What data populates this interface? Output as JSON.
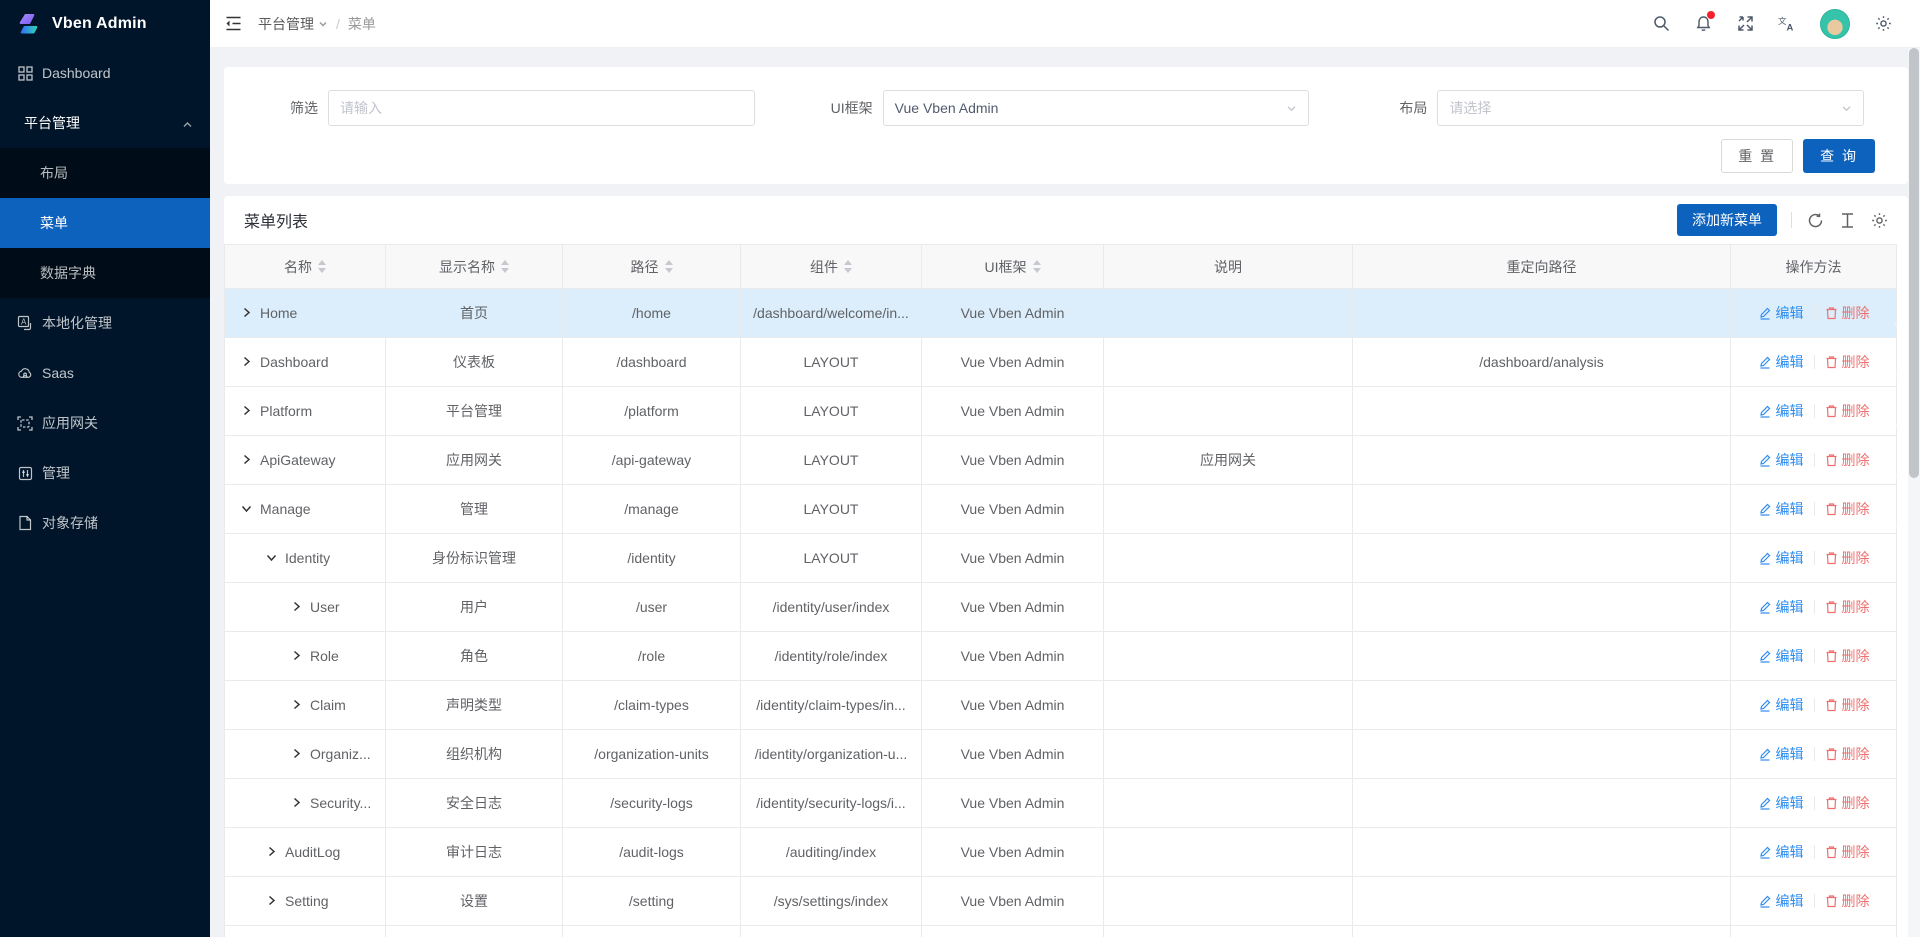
{
  "colors": {
    "primary": "#0d62bd",
    "sidebar_bg": "#001529",
    "sidebar_child_bg": "#000c17",
    "row_highlight": "#dceefb",
    "edit_link": "#2d8cf0",
    "delete_link": "#ed6f6f",
    "notification_dot": "#f5222d"
  },
  "app": {
    "logo_text": "Vben Admin"
  },
  "sidebar": {
    "items": [
      {
        "key": "dashboard",
        "label": "Dashboard",
        "icon": "dashboard-icon",
        "type": "root",
        "chevron": "down"
      },
      {
        "key": "platform-group",
        "label": "平台管理",
        "icon": "",
        "type": "group",
        "chevron": "up"
      },
      {
        "key": "layout",
        "label": "布局",
        "icon": "",
        "type": "child",
        "chevron": ""
      },
      {
        "key": "menu",
        "label": "菜单",
        "icon": "",
        "type": "child",
        "chevron": "",
        "selected": true
      },
      {
        "key": "data-dict",
        "label": "数据字典",
        "icon": "",
        "type": "child",
        "chevron": ""
      },
      {
        "key": "localization",
        "label": "本地化管理",
        "icon": "localization-icon",
        "type": "root",
        "chevron": "down"
      },
      {
        "key": "saas",
        "label": "Saas",
        "icon": "saas-cloud-icon",
        "type": "root",
        "chevron": "down"
      },
      {
        "key": "api-gateway",
        "label": "应用网关",
        "icon": "gateway-icon",
        "type": "root",
        "chevron": "down"
      },
      {
        "key": "manage",
        "label": "管理",
        "icon": "manage-icon",
        "type": "root",
        "chevron": "down"
      },
      {
        "key": "object-storage",
        "label": "对象存储",
        "icon": "storage-icon",
        "type": "root",
        "chevron": "down"
      }
    ]
  },
  "header": {
    "breadcrumb": {
      "group": "平台管理",
      "separator": "/",
      "current": "菜单"
    }
  },
  "filter": {
    "filter_label": "筛选",
    "filter_placeholder": "请输入",
    "ui_label": "UI框架",
    "ui_value": "Vue Vben Admin",
    "layout_label": "布局",
    "layout_placeholder": "请选择",
    "reset_label": "重 置",
    "search_label": "查 询"
  },
  "grid": {
    "title": "菜单列表",
    "add_button": "添加新菜单",
    "edit_label": "编辑",
    "delete_label": "删除",
    "columns": [
      {
        "label": "名称",
        "sortable": true
      },
      {
        "label": "显示名称",
        "sortable": true
      },
      {
        "label": "路径",
        "sortable": true
      },
      {
        "label": "组件",
        "sortable": true
      },
      {
        "label": "UI框架",
        "sortable": true
      },
      {
        "label": "说明",
        "sortable": false
      },
      {
        "label": "重定向路径",
        "sortable": false
      },
      {
        "label": "操作方法",
        "sortable": false
      }
    ],
    "rows": [
      {
        "name": "Home",
        "display": "首页",
        "path": "/home",
        "component": "/dashboard/welcome/in...",
        "ui": "Vue Vben Admin",
        "desc": "",
        "redirect": "",
        "level": 0,
        "expanded": false,
        "highlighted": true
      },
      {
        "name": "Dashboard",
        "display": "仪表板",
        "path": "/dashboard",
        "component": "LAYOUT",
        "ui": "Vue Vben Admin",
        "desc": "",
        "redirect": "/dashboard/analysis",
        "level": 0,
        "expanded": false
      },
      {
        "name": "Platform",
        "display": "平台管理",
        "path": "/platform",
        "component": "LAYOUT",
        "ui": "Vue Vben Admin",
        "desc": "",
        "redirect": "",
        "level": 0,
        "expanded": false
      },
      {
        "name": "ApiGateway",
        "display": "应用网关",
        "path": "/api-gateway",
        "component": "LAYOUT",
        "ui": "Vue Vben Admin",
        "desc": "应用网关",
        "redirect": "",
        "level": 0,
        "expanded": false
      },
      {
        "name": "Manage",
        "display": "管理",
        "path": "/manage",
        "component": "LAYOUT",
        "ui": "Vue Vben Admin",
        "desc": "",
        "redirect": "",
        "level": 0,
        "expanded": true
      },
      {
        "name": "Identity",
        "display": "身份标识管理",
        "path": "/identity",
        "component": "LAYOUT",
        "ui": "Vue Vben Admin",
        "desc": "",
        "redirect": "",
        "level": 1,
        "expanded": true
      },
      {
        "name": "User",
        "display": "用户",
        "path": "/user",
        "component": "/identity/user/index",
        "ui": "Vue Vben Admin",
        "desc": "",
        "redirect": "",
        "level": 2,
        "expanded": false
      },
      {
        "name": "Role",
        "display": "角色",
        "path": "/role",
        "component": "/identity/role/index",
        "ui": "Vue Vben Admin",
        "desc": "",
        "redirect": "",
        "level": 2,
        "expanded": false
      },
      {
        "name": "Claim",
        "display": "声明类型",
        "path": "/claim-types",
        "component": "/identity/claim-types/in...",
        "ui": "Vue Vben Admin",
        "desc": "",
        "redirect": "",
        "level": 2,
        "expanded": false
      },
      {
        "name": "Organiz...",
        "display": "组织机构",
        "path": "/organization-units",
        "component": "/identity/organization-u...",
        "ui": "Vue Vben Admin",
        "desc": "",
        "redirect": "",
        "level": 2,
        "expanded": false
      },
      {
        "name": "Security...",
        "display": "安全日志",
        "path": "/security-logs",
        "component": "/identity/security-logs/i...",
        "ui": "Vue Vben Admin",
        "desc": "",
        "redirect": "",
        "level": 2,
        "expanded": false
      },
      {
        "name": "AuditLog",
        "display": "审计日志",
        "path": "/audit-logs",
        "component": "/auditing/index",
        "ui": "Vue Vben Admin",
        "desc": "",
        "redirect": "",
        "level": 1,
        "expanded": false
      },
      {
        "name": "Setting",
        "display": "设置",
        "path": "/setting",
        "component": "/sys/settings/index",
        "ui": "Vue Vben Admin",
        "desc": "",
        "redirect": "",
        "level": 1,
        "expanded": false
      }
    ],
    "has_partial_row": true
  }
}
